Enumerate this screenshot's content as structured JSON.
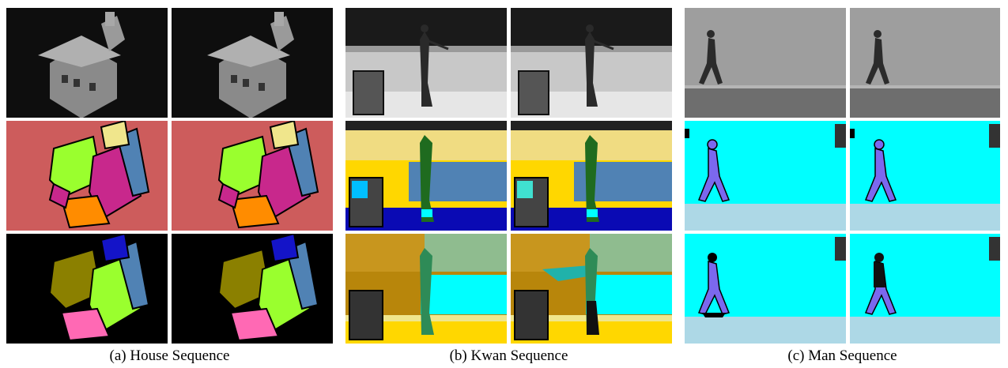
{
  "figure": {
    "captions": {
      "house": "(a) House Sequence",
      "kwan": "(b) Kwan Sequence",
      "man": "(c) Man Sequence"
    },
    "colors": {
      "house_bg_segment": "#cd5c5c",
      "house_bg_result": "#000000",
      "lime": "#9aff2e",
      "magenta": "#c8288c",
      "orange": "#ff8c00",
      "steelblue": "#5082b4",
      "khaki": "#f0e68c",
      "olive": "#8b8000",
      "pink": "#ff69b4",
      "blue": "#1414c8",
      "cyan": "#00ffff",
      "lightblue": "#add8e6",
      "purple": "#7b68ee",
      "darkgreen": "#1f6b1f",
      "gold": "#ffd700",
      "wheat": "#f0dc82",
      "goldenrod": "#c8961e",
      "sage": "#8fbc8f",
      "navy": "#0a0ab4"
    }
  }
}
